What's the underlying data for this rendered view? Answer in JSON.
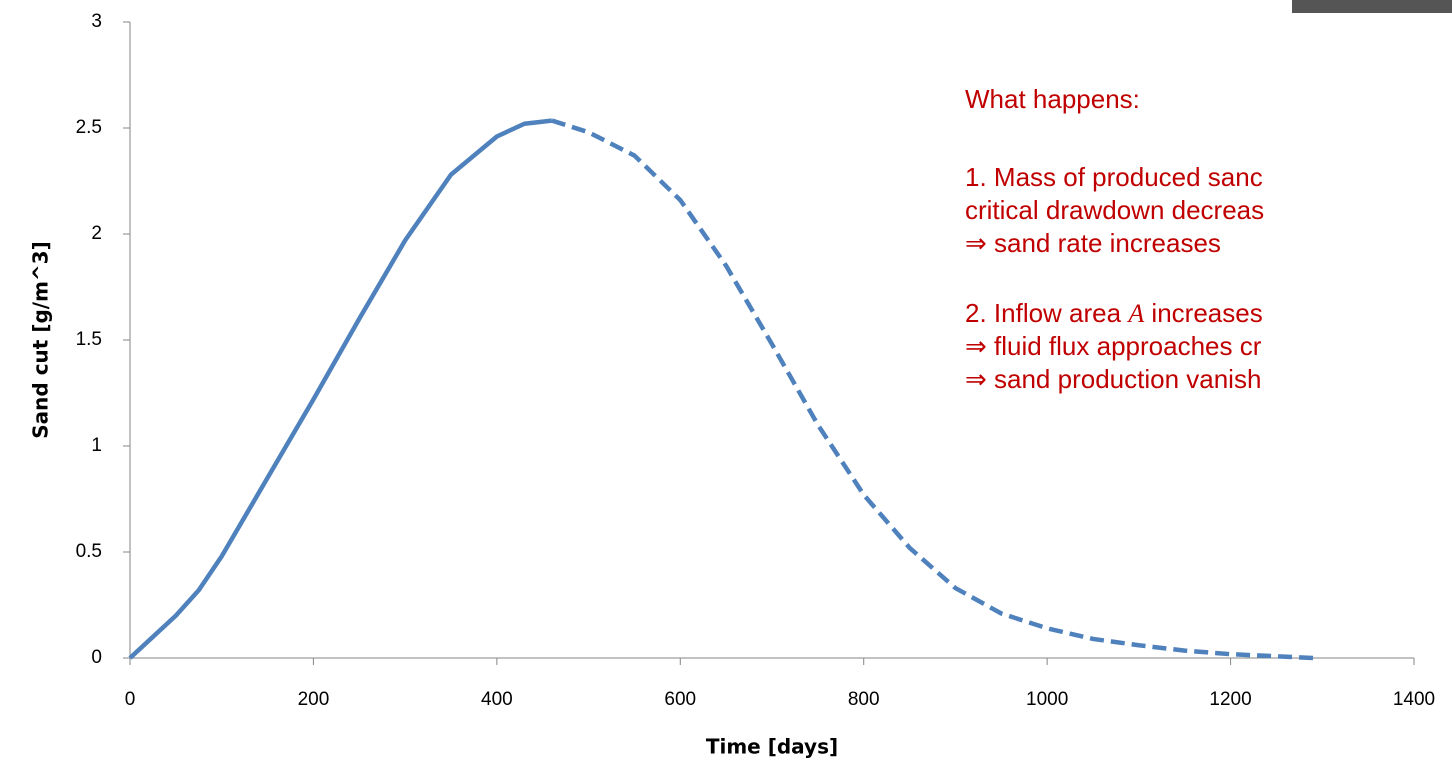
{
  "chart_data": {
    "type": "line",
    "xlabel": "Time [days]",
    "ylabel": "Sand cut [g/m^3]",
    "xlim": [
      0,
      1400
    ],
    "xticks": [
      0,
      200,
      400,
      600,
      800,
      1000,
      1200,
      1400
    ],
    "ylim": [
      0,
      3
    ],
    "yticks": [
      0,
      0.5,
      1,
      1.5,
      2,
      2.5,
      3
    ],
    "series": [
      {
        "color": "#4f81bd",
        "dashed": false,
        "x": [
          0,
          25,
          50,
          75,
          100,
          150,
          200,
          250,
          300,
          350,
          400,
          430,
          460
        ],
        "values": [
          0,
          0.1,
          0.2,
          0.32,
          0.48,
          0.85,
          1.22,
          1.6,
          1.97,
          2.28,
          2.46,
          2.52,
          2.535
        ]
      },
      {
        "color": "#4f81bd",
        "dashed": true,
        "x": [
          460,
          500,
          550,
          600,
          650,
          700,
          750,
          800,
          850,
          900,
          950,
          1000,
          1050,
          1100,
          1150,
          1200,
          1250,
          1290
        ],
        "values": [
          2.535,
          2.48,
          2.37,
          2.16,
          1.85,
          1.48,
          1.1,
          0.77,
          0.52,
          0.33,
          0.21,
          0.14,
          0.09,
          0.06,
          0.035,
          0.018,
          0.008,
          0
        ]
      }
    ],
    "annotations": [
      [
        "What happens:"
      ],
      [
        "1. Mass of produced sanc"
      ],
      [
        "critical drawdown decreas"
      ],
      [
        "⇒ sand rate increases"
      ],
      [
        "2. Inflow area ",
        "A",
        " increases"
      ],
      [
        "⇒ fluid flux approaches cr"
      ],
      [
        "⇒ sand production vanish"
      ]
    ]
  }
}
